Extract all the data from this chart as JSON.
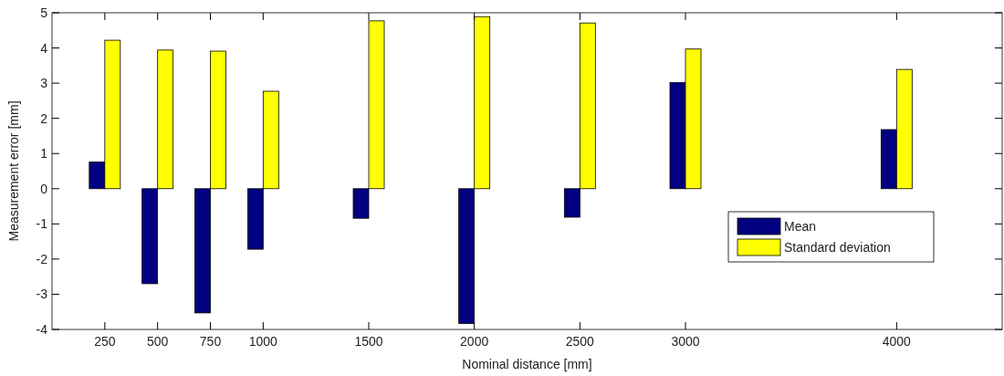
{
  "chart_data": {
    "type": "bar",
    "xlabel": "Nominal distance [mm]",
    "ylabel": "Measurement error [mm]",
    "x": [
      250,
      500,
      750,
      1000,
      1500,
      2000,
      2500,
      3000,
      4000
    ],
    "series": [
      {
        "name": "Mean",
        "color": "#000080",
        "values": [
          0.76,
          -2.7,
          -3.53,
          -1.72,
          -0.84,
          -3.83,
          -0.81,
          3.02,
          1.68
        ]
      },
      {
        "name": "Standard deviation",
        "color": "#ffff00",
        "values": [
          4.22,
          3.94,
          3.91,
          2.77,
          4.77,
          4.89,
          4.71,
          3.97,
          3.39
        ]
      }
    ],
    "xlim": [
      0,
      4500
    ],
    "xticks": [
      250,
      500,
      750,
      1000,
      1500,
      2000,
      2500,
      3000,
      4000
    ],
    "ylim": [
      -4,
      5
    ],
    "yticks": [
      -4,
      -3,
      -2,
      -1,
      0,
      1,
      2,
      3,
      4,
      5
    ],
    "legend": "right",
    "grid": false
  }
}
